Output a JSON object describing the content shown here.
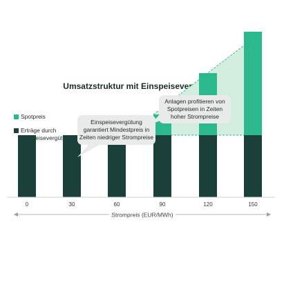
{
  "chart_data": {
    "type": "bar",
    "title": "Umsatzstruktur mit Einspeisevergütung",
    "xlabel": "Strompreis (EUR/MWh)",
    "ylabel": "",
    "categories": [
      "0",
      "30",
      "60",
      "90",
      "120",
      "150"
    ],
    "series": [
      {
        "name": "Erträge durch Einspeisevergütung",
        "values": [
          90,
          90,
          90,
          90,
          90,
          90
        ],
        "color": "#1b4039"
      },
      {
        "name": "Spotpreis",
        "values": [
          0,
          0,
          0,
          30,
          90,
          150
        ],
        "color": "#2ab88c"
      }
    ],
    "ylim": [
      0,
      170
    ],
    "grid": false,
    "legend": "left",
    "highlight_color": "#d3eedf",
    "annotations": [
      {
        "lines": [
          "Einspeisevergütung",
          "garantiert Mindestpreis in",
          "Zeiten niedriger Strompreise"
        ]
      },
      {
        "lines": [
          "Anlagen profitieren von",
          "Spotpreisen in Zeiten",
          "hoher Strompreise"
        ]
      }
    ]
  }
}
